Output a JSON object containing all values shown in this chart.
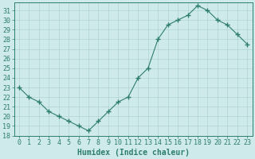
{
  "x": [
    0,
    1,
    2,
    3,
    4,
    5,
    6,
    7,
    8,
    9,
    10,
    11,
    12,
    13,
    14,
    15,
    16,
    17,
    18,
    19,
    20,
    21,
    22,
    23
  ],
  "y": [
    23.0,
    22.0,
    21.5,
    20.5,
    20.0,
    19.5,
    19.0,
    18.5,
    19.5,
    20.5,
    21.5,
    22.0,
    24.0,
    25.0,
    28.0,
    29.5,
    30.0,
    30.5,
    31.5,
    31.0,
    30.0,
    29.5,
    28.5,
    27.5
  ],
  "xlabel": "Humidex (Indice chaleur)",
  "ylim": [
    18,
    31.8
  ],
  "xlim": [
    -0.5,
    23.5
  ],
  "yticks": [
    18,
    19,
    20,
    21,
    22,
    23,
    24,
    25,
    26,
    27,
    28,
    29,
    30,
    31
  ],
  "xticks": [
    0,
    1,
    2,
    3,
    4,
    5,
    6,
    7,
    8,
    9,
    10,
    11,
    12,
    13,
    14,
    15,
    16,
    17,
    18,
    19,
    20,
    21,
    22,
    23
  ],
  "line_color": "#2e7d6e",
  "marker": "+",
  "marker_size": 4.0,
  "bg_color": "#ceeaea",
  "grid_color": "#a8cece",
  "axes_color": "#2e7d6e",
  "tick_label_color": "#2e7d6e",
  "xlabel_color": "#2e7d6e",
  "xlabel_fontsize": 7,
  "tick_fontsize": 6
}
